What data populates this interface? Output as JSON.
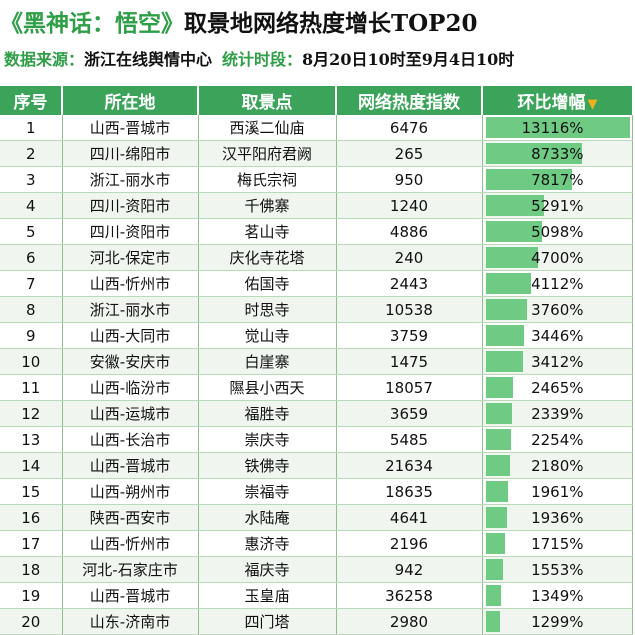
{
  "header": {
    "title_green": "《黑神话：悟空》",
    "title_black": "取景地网络热度增长TOP20",
    "source_label": "数据来源：",
    "source_value": "浙江在线舆情中心",
    "period_label": "统计时段：",
    "period_value": "8月20日10时至9月4日10时"
  },
  "table": {
    "columns": [
      "序号",
      "所在地",
      "取景点",
      "网络热度指数",
      "环比增幅"
    ],
    "sort_indicator": "▼",
    "max_growth": 13116,
    "rows": [
      {
        "rank": "1",
        "location": "山西-晋城市",
        "site": "西溪二仙庙",
        "heat": "6476",
        "growth": "13116%",
        "growth_value": 13116
      },
      {
        "rank": "2",
        "location": "四川-绵阳市",
        "site": "汉平阳府君阙",
        "heat": "265",
        "growth": "8733%",
        "growth_value": 8733
      },
      {
        "rank": "3",
        "location": "浙江-丽水市",
        "site": "梅氏宗祠",
        "heat": "950",
        "growth": "7817%",
        "growth_value": 7817
      },
      {
        "rank": "4",
        "location": "四川-资阳市",
        "site": "千佛寨",
        "heat": "1240",
        "growth": "5291%",
        "growth_value": 5291
      },
      {
        "rank": "5",
        "location": "四川-资阳市",
        "site": "茗山寺",
        "heat": "4886",
        "growth": "5098%",
        "growth_value": 5098
      },
      {
        "rank": "6",
        "location": "河北-保定市",
        "site": "庆化寺花塔",
        "heat": "240",
        "growth": "4700%",
        "growth_value": 4700
      },
      {
        "rank": "7",
        "location": "山西-忻州市",
        "site": "佑国寺",
        "heat": "2443",
        "growth": "4112%",
        "growth_value": 4112
      },
      {
        "rank": "8",
        "location": "浙江-丽水市",
        "site": "时思寺",
        "heat": "10538",
        "growth": "3760%",
        "growth_value": 3760
      },
      {
        "rank": "9",
        "location": "山西-大同市",
        "site": "觉山寺",
        "heat": "3759",
        "growth": "3446%",
        "growth_value": 3446
      },
      {
        "rank": "10",
        "location": "安徽-安庆市",
        "site": "白崖寨",
        "heat": "1475",
        "growth": "3412%",
        "growth_value": 3412
      },
      {
        "rank": "11",
        "location": "山西-临汾市",
        "site": "隰县小西天",
        "heat": "18057",
        "growth": "2465%",
        "growth_value": 2465
      },
      {
        "rank": "12",
        "location": "山西-运城市",
        "site": "福胜寺",
        "heat": "3659",
        "growth": "2339%",
        "growth_value": 2339
      },
      {
        "rank": "13",
        "location": "山西-长治市",
        "site": "崇庆寺",
        "heat": "5485",
        "growth": "2254%",
        "growth_value": 2254
      },
      {
        "rank": "14",
        "location": "山西-晋城市",
        "site": "铁佛寺",
        "heat": "21634",
        "growth": "2180%",
        "growth_value": 2180
      },
      {
        "rank": "15",
        "location": "山西-朔州市",
        "site": "崇福寺",
        "heat": "18635",
        "growth": "1961%",
        "growth_value": 1961
      },
      {
        "rank": "16",
        "location": "陕西-西安市",
        "site": "水陆庵",
        "heat": "4641",
        "growth": "1936%",
        "growth_value": 1936
      },
      {
        "rank": "17",
        "location": "山西-忻州市",
        "site": "惠济寺",
        "heat": "2196",
        "growth": "1715%",
        "growth_value": 1715
      },
      {
        "rank": "18",
        "location": "河北-石家庄市",
        "site": "福庆寺",
        "heat": "942",
        "growth": "1553%",
        "growth_value": 1553
      },
      {
        "rank": "19",
        "location": "山西-晋城市",
        "site": "玉皇庙",
        "heat": "36258",
        "growth": "1349%",
        "growth_value": 1349
      },
      {
        "rank": "20",
        "location": "山东-济南市",
        "site": "四门塔",
        "heat": "2980",
        "growth": "1299%",
        "growth_value": 1299
      }
    ]
  },
  "colors": {
    "accent_green": "#2e9e47",
    "header_bg": "#3ba45a",
    "bar": "#6fca83",
    "arrow": "#f2b01e"
  }
}
